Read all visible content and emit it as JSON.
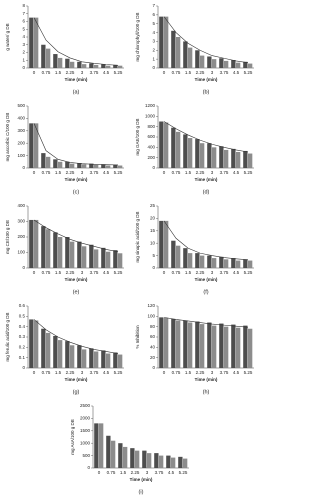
{
  "chart_data": [
    {
      "type": "bar",
      "panel_label": "(a)",
      "ylabel": "g water/ g DB",
      "xlabel": "Time (min)",
      "categories": [
        "0",
        "0.75",
        "1.5",
        "2.25",
        "3",
        "3.75",
        "4.5",
        "5.25"
      ],
      "series": [
        {
          "color": "#4d4d4d",
          "values": [
            6.5,
            3,
            1.8,
            1.2,
            0.8,
            0.6,
            0.5,
            0.4
          ]
        },
        {
          "color": "#8c8c8c",
          "values": [
            6.5,
            2.5,
            1.3,
            0.8,
            0.5,
            0.4,
            0.3,
            0.3
          ]
        },
        {
          "type": "line",
          "color": "#333333",
          "values": [
            6.5,
            3.6,
            2.1,
            1.3,
            0.8,
            0.6,
            0.45,
            0.35
          ]
        }
      ],
      "ylim": [
        0,
        8
      ],
      "yticks": [
        0,
        1,
        2,
        3,
        4,
        5,
        6,
        7,
        8
      ]
    },
    {
      "type": "bar",
      "panel_label": "(b)",
      "ylabel": "mg chlorophyll/100 g DB",
      "xlabel": "Time (min)",
      "categories": [
        "0",
        "0.75",
        "1.5",
        "2.25",
        "3",
        "3.75",
        "4.5",
        "5.25"
      ],
      "series": [
        {
          "color": "#4d4d4d",
          "values": [
            5.8,
            4.2,
            3,
            2,
            1.3,
            1.1,
            0.9,
            0.7
          ]
        },
        {
          "color": "#8c8c8c",
          "values": [
            5.8,
            3.5,
            2.3,
            1.4,
            1,
            0.8,
            0.6,
            0.5
          ]
        },
        {
          "type": "line",
          "color": "#333333",
          "values": [
            5.8,
            4,
            2.8,
            2,
            1.4,
            1.1,
            0.8,
            0.6
          ]
        }
      ],
      "ylim": [
        0,
        7
      ],
      "yticks": [
        0,
        1,
        2,
        3,
        4,
        5,
        6,
        7
      ]
    },
    {
      "type": "bar",
      "panel_label": "(c)",
      "ylabel": "mg ascorbic C/100 g DB",
      "xlabel": "Time (min)",
      "categories": [
        "0",
        "0.75",
        "1.5",
        "2.25",
        "3",
        "3.75",
        "4.5",
        "5.25"
      ],
      "series": [
        {
          "color": "#4d4d4d",
          "values": [
            360,
            120,
            70,
            50,
            40,
            35,
            30,
            25
          ]
        },
        {
          "color": "#8c8c8c",
          "values": [
            360,
            90,
            50,
            35,
            30,
            25,
            20,
            20
          ]
        },
        {
          "type": "line",
          "color": "#333333",
          "values": [
            360,
            140,
            70,
            45,
            35,
            30,
            27,
            25
          ]
        }
      ],
      "ylim": [
        0,
        500
      ],
      "yticks": [
        0,
        100,
        200,
        300,
        400,
        500
      ]
    },
    {
      "type": "bar",
      "panel_label": "(d)",
      "ylabel": "mg GAE/100 g DB",
      "xlabel": "Time (min)",
      "categories": [
        "0",
        "0.75",
        "1.5",
        "2.25",
        "3",
        "3.75",
        "4.5",
        "5.25"
      ],
      "series": [
        {
          "color": "#4d4d4d",
          "values": [
            900,
            780,
            650,
            560,
            480,
            420,
            370,
            330
          ]
        },
        {
          "color": "#8c8c8c",
          "values": [
            880,
            700,
            580,
            480,
            400,
            350,
            310,
            280
          ]
        },
        {
          "type": "line",
          "color": "#333333",
          "values": [
            900,
            760,
            640,
            540,
            460,
            400,
            350,
            310
          ]
        }
      ],
      "ylim": [
        0,
        1200
      ],
      "yticks": [
        0,
        200,
        400,
        600,
        800,
        1000,
        1200
      ]
    },
    {
      "type": "bar",
      "panel_label": "(e)",
      "ylabel": "mg CE/100 g DB",
      "xlabel": "Time (min)",
      "categories": [
        "0",
        "0.75",
        "1.5",
        "2.25",
        "3",
        "3.75",
        "4.5",
        "5.25"
      ],
      "series": [
        {
          "color": "#4d4d4d",
          "values": [
            310,
            270,
            230,
            200,
            170,
            150,
            130,
            115
          ]
        },
        {
          "color": "#8c8c8c",
          "values": [
            310,
            250,
            200,
            170,
            140,
            120,
            105,
            95
          ]
        },
        {
          "type": "line",
          "color": "#333333",
          "values": [
            310,
            260,
            220,
            185,
            160,
            140,
            120,
            105
          ]
        }
      ],
      "ylim": [
        0,
        400
      ],
      "yticks": [
        0,
        100,
        200,
        300,
        400
      ]
    },
    {
      "type": "bar",
      "panel_label": "(f)",
      "ylabel": "mg sinapic acid/100 g DB",
      "xlabel": "Time (min)",
      "categories": [
        "0",
        "0.75",
        "1.5",
        "2.25",
        "3",
        "3.75",
        "4.5",
        "5.25"
      ],
      "series": [
        {
          "color": "#4d4d4d",
          "values": [
            19,
            11,
            8,
            6,
            5,
            4.5,
            4,
            3.5
          ]
        },
        {
          "color": "#8c8c8c",
          "values": [
            19,
            9,
            6,
            5,
            4,
            3.5,
            3,
            3
          ]
        },
        {
          "type": "line",
          "color": "#333333",
          "values": [
            19,
            12,
            8,
            6,
            5,
            4.2,
            3.7,
            3.3
          ]
        }
      ],
      "ylim": [
        0,
        25
      ],
      "yticks": [
        0,
        5,
        10,
        15,
        20,
        25
      ]
    },
    {
      "type": "bar",
      "panel_label": "(g)",
      "ylabel": "mg ferulic acid/100 g DB",
      "xlabel": "Time (min)",
      "categories": [
        "0",
        "0.75",
        "1.5",
        "2.25",
        "3",
        "3.75",
        "4.5",
        "5.25"
      ],
      "series": [
        {
          "color": "#4d4d4d",
          "values": [
            0.47,
            0.38,
            0.31,
            0.26,
            0.22,
            0.19,
            0.17,
            0.15
          ]
        },
        {
          "color": "#8c8c8c",
          "values": [
            0.46,
            0.34,
            0.27,
            0.22,
            0.18,
            0.16,
            0.14,
            0.13
          ]
        },
        {
          "type": "line",
          "color": "#333333",
          "values": [
            0.47,
            0.37,
            0.3,
            0.25,
            0.21,
            0.18,
            0.16,
            0.14
          ]
        }
      ],
      "ylim": [
        0,
        0.6
      ],
      "yticks": [
        0,
        0.1,
        0.2,
        0.3,
        0.4,
        0.5,
        0.6
      ]
    },
    {
      "type": "bar",
      "panel_label": "(h)",
      "ylabel": "% Inhibition",
      "xlabel": "Time (min)",
      "categories": [
        "0",
        "0.75",
        "1.5",
        "2.25",
        "3",
        "3.75",
        "4.5",
        "5.25"
      ],
      "series": [
        {
          "color": "#4d4d4d",
          "values": [
            98,
            95,
            92,
            90,
            88,
            86,
            84,
            82
          ]
        },
        {
          "color": "#8c8c8c",
          "values": [
            97,
            92,
            88,
            85,
            82,
            80,
            78,
            76
          ]
        },
        {
          "type": "line",
          "color": "#333333",
          "values": [
            98,
            94,
            91,
            88,
            85,
            83,
            81,
            79
          ]
        }
      ],
      "ylim": [
        0,
        120
      ],
      "yticks": [
        0,
        20,
        40,
        60,
        80,
        100,
        120
      ]
    },
    {
      "type": "bar",
      "panel_label": "(i)",
      "ylabel": "mg AsA/100 g DB",
      "xlabel": "Time (min)",
      "categories": [
        "0",
        "0.75",
        "1.5",
        "2.25",
        "3",
        "3.75",
        "4.5",
        "5.25"
      ],
      "series": [
        {
          "color": "#4d4d4d",
          "values": [
            1800,
            1300,
            1000,
            800,
            700,
            600,
            500,
            450
          ]
        },
        {
          "color": "#8c8c8c",
          "values": [
            1800,
            1100,
            850,
            700,
            600,
            500,
            420,
            380
          ]
        }
      ],
      "ylim": [
        0,
        2500
      ],
      "yticks": [
        0,
        500,
        1000,
        1500,
        2000,
        2500
      ]
    }
  ]
}
